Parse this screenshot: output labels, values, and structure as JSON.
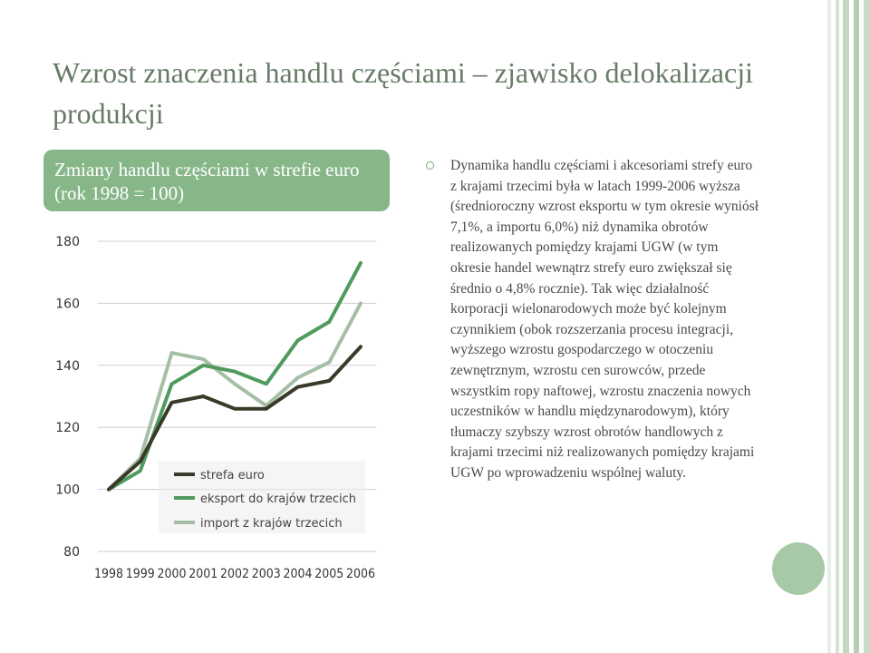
{
  "slide": {
    "title": "Wzrost znaczenia handlu częściami – zjawisko delokalizacji produkcji",
    "box_title": "Zmiany handlu częściami w strefie euro (rok 1998 = 100)",
    "bullet_text": "Dynamika handlu częściami i akcesoriami strefy euro z krajami trzecimi była w latach 1999-2006 wyższa (średnioroczny wzrost eksportu w tym okresie wyniósł 7,1%, a importu 6,0%) niż dynamika obrotów realizowanych pomiędzy krajami UGW (w tym okresie handel wewnątrz strefy euro zwiększał się średnio o 4,8% rocznie). Tak więc działalność korporacji wielonarodowych może być kolejnym czynnikiem (obok rozszerzania procesu integracji, wyższego wzrostu gospodarczego w otoczeniu zewnętrznym, wzrostu cen surowców, przede wszystkim ropy naftowej, wzrostu znaczenia nowych uczestników w handlu międzynarodowym), który tłumaczy szybszy wzrost obrotów handlowych z krajami trzecimi niż realizowanych pomiędzy krajami UGW po wprowadzeniu wspólnej waluty."
  },
  "colors": {
    "box_bg": "#87b789",
    "title": "#687a67",
    "strefa": "#3a3a28",
    "eksport": "#4f9a5d",
    "import": "#a5bfa7"
  },
  "chart_data": {
    "type": "line",
    "x": [
      "1998",
      "1999",
      "2000",
      "2001",
      "2002",
      "2003",
      "2004",
      "2005",
      "2006"
    ],
    "ylim": [
      80,
      180
    ],
    "yticks": [
      "80",
      "100",
      "120",
      "140",
      "160",
      "180"
    ],
    "grid": "horizontal",
    "legend_position": "bottom-right inside plot",
    "series": [
      {
        "name": "strefa euro",
        "values": [
          100,
          109,
          128,
          130,
          126,
          126,
          133,
          135,
          146
        ]
      },
      {
        "name": "eksport do krajów trzecich",
        "values": [
          100,
          106,
          134,
          140,
          138,
          134,
          148,
          154,
          173
        ]
      },
      {
        "name": "import z krajów trzecich",
        "values": [
          100,
          110,
          144,
          142,
          134,
          127,
          136,
          141,
          160
        ]
      }
    ]
  }
}
